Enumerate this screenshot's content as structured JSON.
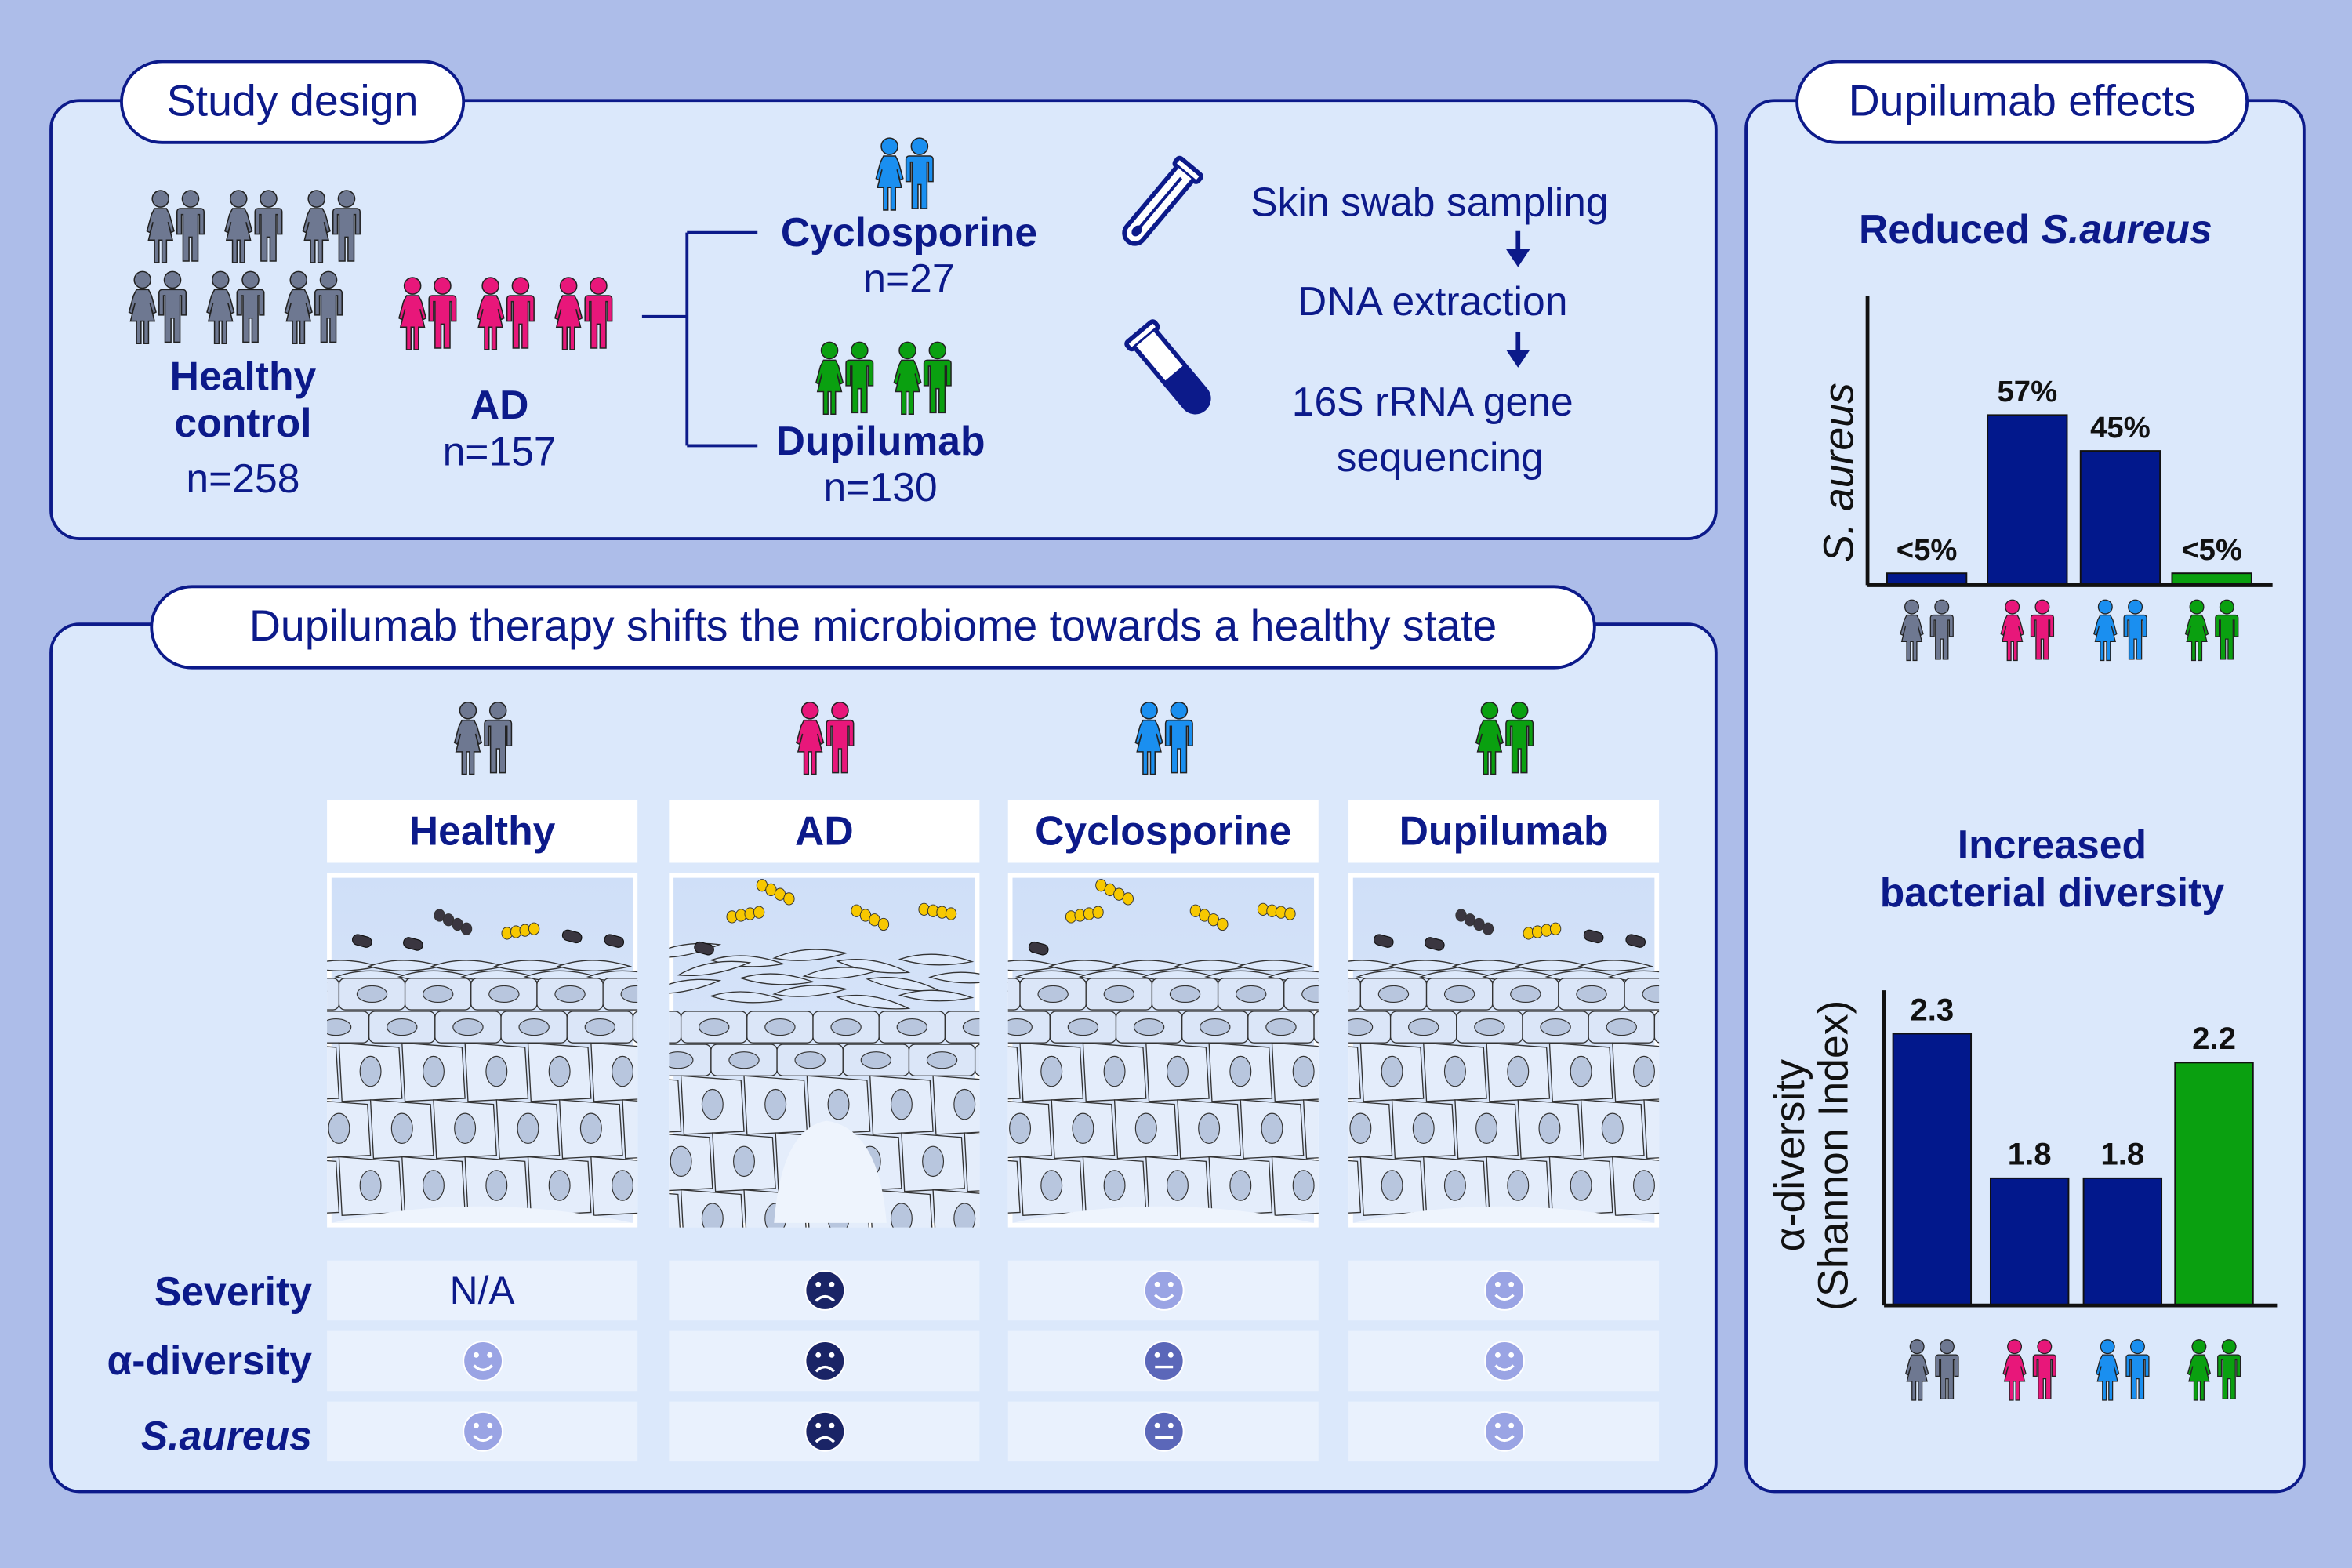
{
  "colors": {
    "background": "#adbde9",
    "panel": "#dbe8fb",
    "navy": "#0c1a8a",
    "bar_navy": "#02188c",
    "healthy": "#6e7891",
    "ad": "#e8177a",
    "cyclosporine": "#1a8ff0",
    "dupilumab": "#0aa010",
    "bacteria_yellow": "#f7c800",
    "bacteria_dark": "#3a3640"
  },
  "study_design": {
    "title": "Study design",
    "healthy": {
      "label_line1": "Healthy",
      "label_line2": "control",
      "n": "n=258",
      "icon": "person-group-icon"
    },
    "ad": {
      "label": "AD",
      "n": "n=157",
      "icon": "person-group-icon"
    },
    "cyclosporine": {
      "label": "Cyclosporine",
      "n": "n=27",
      "icon": "person-pair-icon"
    },
    "dupilumab": {
      "label": "Dupilumab",
      "n": "n=130",
      "icon": "person-group-icon"
    },
    "workflow": {
      "step1": "Skin swab sampling",
      "step2": "DNA extraction",
      "step3_line1": "16S rRNA gene",
      "step3_line2": "sequencing",
      "icons": [
        "swab-tube-icon",
        "sample-tube-icon",
        "arrow-down-icon"
      ]
    }
  },
  "therapy": {
    "title": "Dupilumab therapy shifts the microbiome towards a healthy state",
    "columns": [
      {
        "label": "Healthy",
        "color": "#6e7891"
      },
      {
        "label": "AD",
        "color": "#e8177a"
      },
      {
        "label": "Cyclosporine",
        "color": "#1a8ff0"
      },
      {
        "label": "Dupilumab",
        "color": "#0aa010"
      }
    ],
    "rows": [
      {
        "label": "Severity",
        "cells": [
          {
            "text": "N/A"
          },
          {
            "face": "sad"
          },
          {
            "face": "happy"
          },
          {
            "face": "happy"
          }
        ]
      },
      {
        "label": "α-diversity",
        "cells": [
          {
            "face": "happy"
          },
          {
            "face": "sad"
          },
          {
            "face": "neutral"
          },
          {
            "face": "happy"
          }
        ]
      },
      {
        "label": "S.aureus",
        "cells": [
          {
            "face": "happy"
          },
          {
            "face": "sad"
          },
          {
            "face": "neutral"
          },
          {
            "face": "happy"
          }
        ]
      }
    ],
    "face_colors": {
      "happy": "#9aa4e4",
      "neutral": "#5b67b9",
      "sad": "#1a2466"
    }
  },
  "effects": {
    "title": "Dupilumab effects",
    "chart1_title_plain": "Reduced ",
    "chart1_title_italic": "S.aureus",
    "chart2_title_line1": "Increased",
    "chart2_title_line2": "bacterial diversity"
  },
  "chart_data": [
    {
      "type": "bar",
      "title": "Reduced S.aureus",
      "ylabel": "S. aureus",
      "categories": [
        "Healthy",
        "AD",
        "Cyclosporine",
        "Dupilumab"
      ],
      "values": [
        4,
        57,
        45,
        4
      ],
      "data_labels": [
        "<5%",
        "57%",
        "45%",
        "<5%"
      ],
      "colors": [
        "#02188c",
        "#02188c",
        "#02188c",
        "#0aa010"
      ],
      "ylim": [
        0,
        97
      ],
      "grid": false
    },
    {
      "type": "bar",
      "title": "Increased bacterial diversity",
      "ylabel_line1": "α-diversity",
      "ylabel_line2": "(Shannon Index)",
      "categories": [
        "Healthy",
        "AD",
        "Cyclosporine",
        "Dupilumab"
      ],
      "values": [
        2.3,
        1.8,
        1.8,
        2.2
      ],
      "data_labels": [
        "2.3",
        "1.8",
        "1.8",
        "2.2"
      ],
      "colors": [
        "#02188c",
        "#02188c",
        "#02188c",
        "#0aa010"
      ],
      "ylim": [
        1.36,
        2.45
      ],
      "grid": false
    }
  ]
}
